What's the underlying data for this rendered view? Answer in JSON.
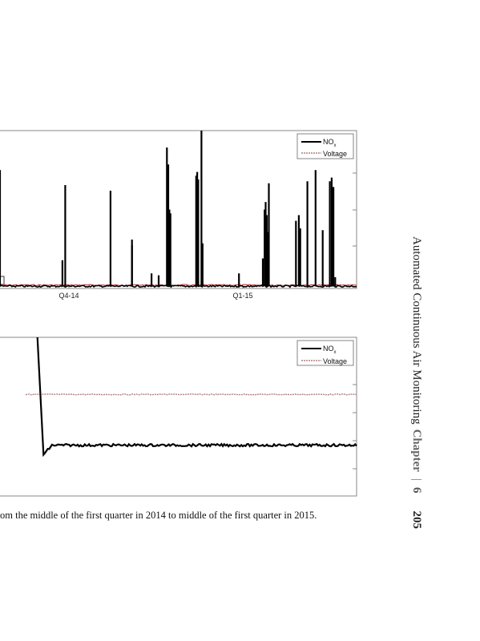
{
  "colors": {
    "nox": "#000000",
    "voltage": "#b08080",
    "voltage_top": "#c04040",
    "axis": "#888888"
  },
  "caption": "om the middle of the first quarter in 2014 to middle of the first quarter in 2015.",
  "running_head": {
    "title": "Automated Continuous Air Monitoring",
    "chapter_label": "Chapter",
    "separator": "|",
    "chapter_number": "6",
    "page_number": "205"
  },
  "chart_data": [
    {
      "type": "line",
      "x_ticks": [
        "Q4-14",
        "Q1-15"
      ],
      "legend": {
        "placement": "top-right",
        "entries": [
          {
            "text": "NO",
            "sub": "x",
            "style": "solid"
          },
          {
            "text": "Voltage",
            "style": "dashed"
          }
        ]
      },
      "grid": false,
      "ylim": [
        0,
        4.2
      ],
      "baseline": 0.06,
      "series": [
        {
          "name": "NOx",
          "spikes": [
            {
              "x": 0.0,
              "y": 3.15
            },
            {
              "x": 0.175,
              "y": 0.75
            },
            {
              "x": 0.183,
              "y": 2.75
            },
            {
              "x": 0.31,
              "y": 2.6
            },
            {
              "x": 0.37,
              "y": 1.3
            },
            {
              "x": 0.37,
              "y": 1.15
            },
            {
              "x": 0.425,
              "y": 0.4
            },
            {
              "x": 0.445,
              "y": 0.35
            },
            {
              "x": 0.468,
              "y": 3.75
            },
            {
              "x": 0.472,
              "y": 3.3
            },
            {
              "x": 0.475,
              "y": 2.1
            },
            {
              "x": 0.478,
              "y": 2.0
            },
            {
              "x": 0.55,
              "y": 3.0
            },
            {
              "x": 0.553,
              "y": 3.1
            },
            {
              "x": 0.556,
              "y": 2.9
            },
            {
              "x": 0.565,
              "y": 4.2
            },
            {
              "x": 0.568,
              "y": 1.2
            },
            {
              "x": 0.67,
              "y": 0.4
            },
            {
              "x": 0.737,
              "y": 0.8
            },
            {
              "x": 0.742,
              "y": 2.1
            },
            {
              "x": 0.745,
              "y": 2.3
            },
            {
              "x": 0.748,
              "y": 1.95
            },
            {
              "x": 0.751,
              "y": 1.5
            },
            {
              "x": 0.754,
              "y": 2.8
            },
            {
              "x": 0.83,
              "y": 1.8
            },
            {
              "x": 0.838,
              "y": 1.95
            },
            {
              "x": 0.842,
              "y": 1.6
            },
            {
              "x": 0.862,
              "y": 2.85
            },
            {
              "x": 0.885,
              "y": 3.15
            },
            {
              "x": 0.905,
              "y": 1.55
            },
            {
              "x": 0.925,
              "y": 2.85
            },
            {
              "x": 0.93,
              "y": 2.95
            },
            {
              "x": 0.935,
              "y": 2.7
            },
            {
              "x": 0.94,
              "y": 0.3
            }
          ]
        },
        {
          "name": "Voltage",
          "value": 0.09
        }
      ]
    },
    {
      "type": "line",
      "legend": {
        "placement": "top-right",
        "entries": [
          {
            "text": "NO",
            "sub": "x",
            "style": "solid"
          },
          {
            "text": "Voltage",
            "style": "dashed"
          }
        ]
      },
      "grid": false,
      "ylim": [
        0,
        1
      ],
      "series": [
        {
          "name": "NOx",
          "drop": {
            "x_start": 0.105,
            "y_start": 1.02,
            "x_end": 0.122,
            "y_end": 0.26
          },
          "steady": 0.32
        },
        {
          "name": "Voltage",
          "x_start": 0.072,
          "value": 0.64
        }
      ]
    }
  ]
}
